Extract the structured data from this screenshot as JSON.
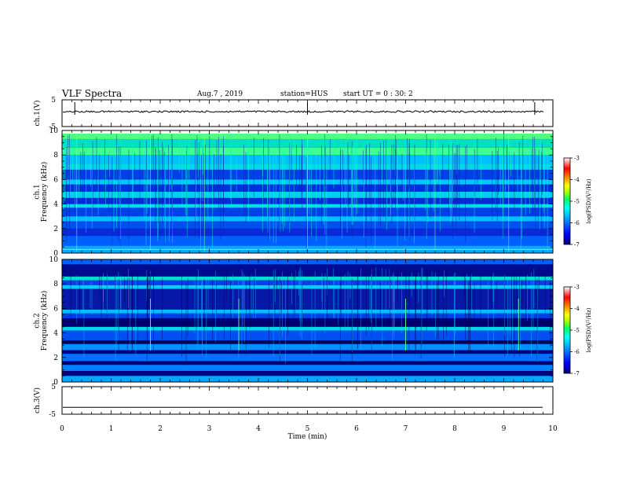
{
  "header": {
    "title": "VLF Spectra",
    "date": "Aug.7 , 2019",
    "station": "station=HUS",
    "start": "start UT = 0 : 30: 2"
  },
  "chart_data": [
    {
      "type": "line",
      "panel": "ch1-waveform",
      "ylabel": "ch.1(V)",
      "ylim": [
        -5,
        5
      ],
      "yticks": [
        "5",
        "-5"
      ],
      "xlim": [
        0,
        10
      ],
      "series": [
        {
          "values": [
            0.0
          ]
        }
      ]
    },
    {
      "type": "heatmap",
      "panel": "ch1-spectrogram",
      "ylabel": "ch.1\nFrequency (kHz)",
      "ylabel_lines": [
        "ch.1",
        "Frequency (kHz)"
      ],
      "ylim": [
        0,
        10
      ],
      "yticks": [
        "0",
        "2",
        "4",
        "6",
        "8",
        "10"
      ],
      "xlim": [
        0,
        10
      ],
      "colorbar": {
        "label": "log(PSD)(V²/Hz)",
        "ticks": [
          "-3",
          "-4",
          "-5",
          "-6",
          "-7"
        ],
        "range": [
          -7,
          -3
        ]
      }
    },
    {
      "type": "heatmap",
      "panel": "ch2-spectrogram",
      "ylabel": "ch.2\nFrequency (kHz)",
      "ylabel_lines": [
        "ch.2",
        "Frequency (kHz)"
      ],
      "ylim": [
        0,
        10
      ],
      "yticks": [
        "0",
        "2",
        "4",
        "6",
        "8",
        "10"
      ],
      "xlim": [
        0,
        10
      ],
      "colorbar": {
        "label": "log(PSD)(V²/Hz)",
        "ticks": [
          "-3",
          "-4",
          "-5",
          "-6",
          "-7"
        ],
        "range": [
          -7,
          -3
        ]
      }
    },
    {
      "type": "line",
      "panel": "ch3-waveform",
      "ylabel": "ch.3(V)",
      "ylim": [
        -5,
        5
      ],
      "yticks": [
        "5",
        "-5"
      ],
      "xlim": [
        0,
        10
      ],
      "xlabel": "Time (min)",
      "xticks": [
        "0",
        "1",
        "2",
        "3",
        "4",
        "5",
        "6",
        "7",
        "8",
        "9",
        "10"
      ],
      "series": [
        {
          "values": [
            -2.5
          ]
        }
      ]
    }
  ],
  "colors": {
    "colormap": [
      "#000080",
      "#0000ff",
      "#00a0ff",
      "#00ffff",
      "#00ff60",
      "#a0ff00",
      "#ffff00",
      "#ff8000",
      "#ff0000",
      "#ffffff"
    ]
  }
}
